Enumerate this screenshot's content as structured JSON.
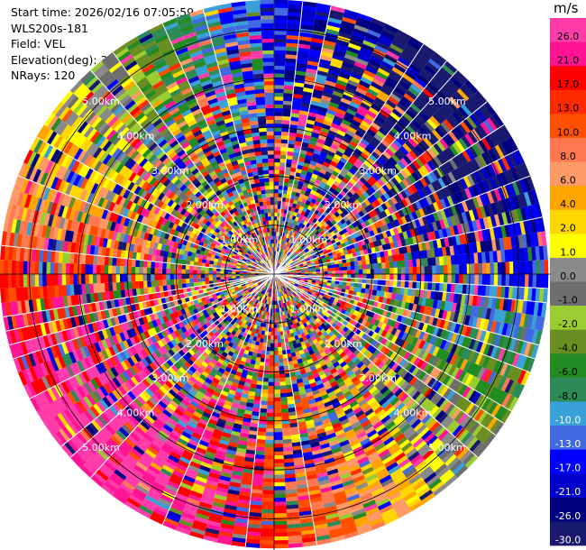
{
  "header": {
    "start_time": "Start time: 2026/02/16 07:05:59",
    "instrument": "WLS200s-181",
    "field": "Field: VEL",
    "elevation": "Elevation(deg): 35.00",
    "nrays": "NRays: 120"
  },
  "colorbar": {
    "title": "m/s",
    "ticks": [
      "26.0",
      "21.0",
      "17.0",
      "13.0",
      "10.0",
      "8.0",
      "6.0",
      "4.0",
      "2.0",
      "1.0",
      "0.0",
      "-1.0",
      "-2.0",
      "-4.0",
      "-6.0",
      "-8.0",
      "-10.0",
      "-13.0",
      "-17.0",
      "-21.0",
      "-26.0",
      "-30.0"
    ],
    "colors": [
      "#ff3caa",
      "#ff1493",
      "#ff0000",
      "#ff2a00",
      "#ff5000",
      "#ff7850",
      "#ff9966",
      "#ffa500",
      "#ffd700",
      "#ffff00",
      "#8a8a8a",
      "#6e6e6e",
      "#9acd32",
      "#6b8e23",
      "#228b22",
      "#2e8b57",
      "#3aa0d8",
      "#4169e1",
      "#0000ff",
      "#0000cd",
      "#000080",
      "#191970"
    ]
  },
  "chart_data": {
    "type": "heatmap",
    "projection": "polar PPI",
    "field": "VEL",
    "units": "m/s",
    "nrays": 120,
    "elevation_deg": 35.0,
    "range_rings_km": [
      1,
      2,
      3,
      4,
      5
    ],
    "ring_labels": [
      "1.00km",
      "2.00km",
      "3.00km",
      "4.00km",
      "5.00km"
    ],
    "max_range_km": 5.6,
    "value_range": [
      -30,
      26
    ]
  }
}
